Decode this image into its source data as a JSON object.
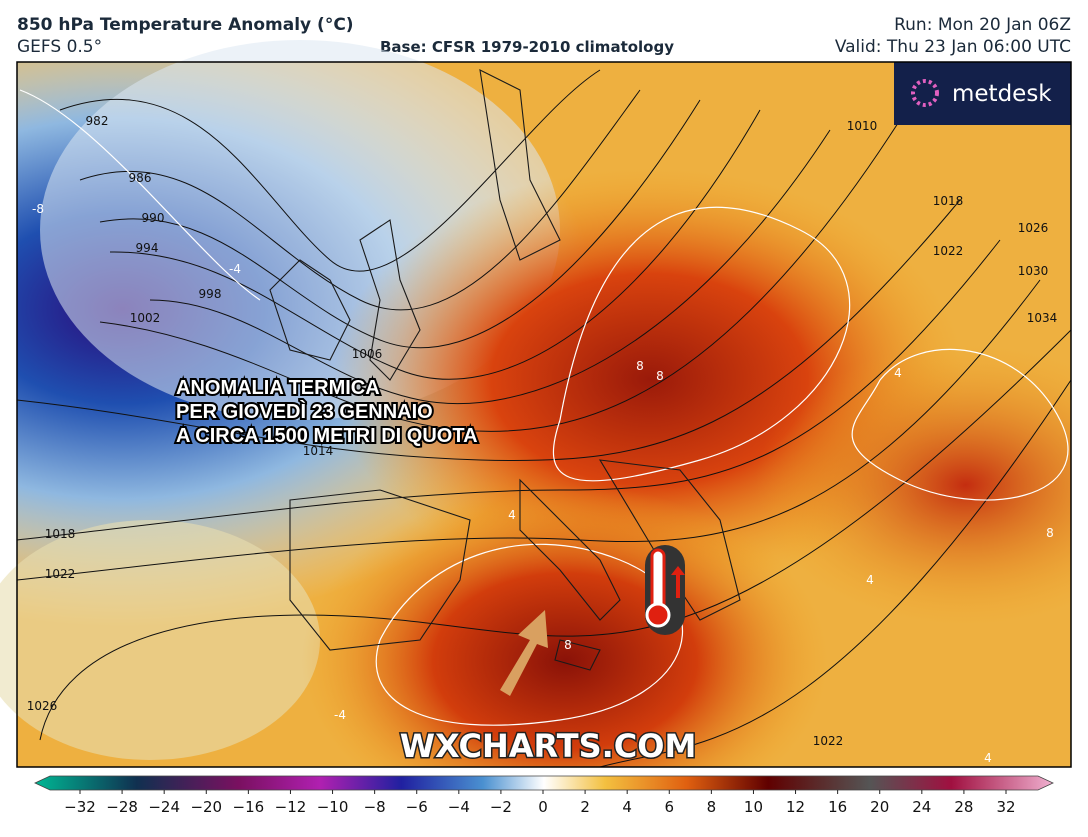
{
  "header": {
    "title": "850 hPa Temperature Anomaly (°C)",
    "model": "GEFS 0.5°",
    "base": "Base: CFSR 1979-2010 climatology",
    "run": "Run: Mon 20 Jan 06Z",
    "valid": "Valid: Thu 23 Jan 06:00 UTC"
  },
  "logo": "metdesk",
  "overlay": {
    "lines": [
      "ANOMALIA TERMICA",
      "PER GIOVEDÌ 23 GENNAIO",
      "A CIRCA 1500 METRI DI QUOTA"
    ]
  },
  "watermark": "WXCHARTS.COM",
  "map": {
    "isobar_labels": [
      "982",
      "986",
      "990",
      "994",
      "998",
      "1002",
      "1006",
      "1010",
      "1014",
      "1018",
      "1022",
      "1026",
      "1030",
      "1034",
      "1018",
      "1022",
      "1026",
      "1022"
    ],
    "anomaly_labels": [
      "-8",
      "-4",
      "8",
      "8",
      "4",
      "4",
      "4",
      "8",
      "-4",
      "4",
      "8"
    ]
  },
  "colorbar": {
    "ticks": [
      "−32",
      "−28",
      "−24",
      "−20",
      "−16",
      "−12",
      "−10",
      "−8",
      "−6",
      "−4",
      "−2",
      "0",
      "2",
      "4",
      "6",
      "8",
      "10",
      "12",
      "16",
      "20",
      "24",
      "28",
      "32"
    ]
  }
}
